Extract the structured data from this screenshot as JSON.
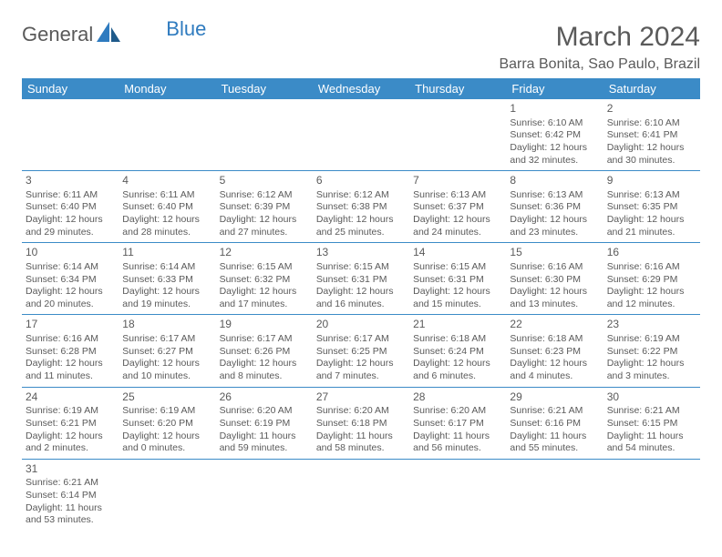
{
  "logo": {
    "text1": "General",
    "text2": "Blue"
  },
  "title": "March 2024",
  "location": "Barra Bonita, Sao Paulo, Brazil",
  "colors": {
    "header_bg": "#3b8bc7",
    "header_text": "#ffffff",
    "body_text": "#5a5a5a",
    "border": "#3b8bc7",
    "logo_accent": "#2f7bbf"
  },
  "day_names": [
    "Sunday",
    "Monday",
    "Tuesday",
    "Wednesday",
    "Thursday",
    "Friday",
    "Saturday"
  ],
  "weeks": [
    [
      null,
      null,
      null,
      null,
      null,
      {
        "n": "1",
        "sr": "6:10 AM",
        "ss": "6:42 PM",
        "dh": "12",
        "dm": "32"
      },
      {
        "n": "2",
        "sr": "6:10 AM",
        "ss": "6:41 PM",
        "dh": "12",
        "dm": "30"
      }
    ],
    [
      {
        "n": "3",
        "sr": "6:11 AM",
        "ss": "6:40 PM",
        "dh": "12",
        "dm": "29"
      },
      {
        "n": "4",
        "sr": "6:11 AM",
        "ss": "6:40 PM",
        "dh": "12",
        "dm": "28"
      },
      {
        "n": "5",
        "sr": "6:12 AM",
        "ss": "6:39 PM",
        "dh": "12",
        "dm": "27"
      },
      {
        "n": "6",
        "sr": "6:12 AM",
        "ss": "6:38 PM",
        "dh": "12",
        "dm": "25"
      },
      {
        "n": "7",
        "sr": "6:13 AM",
        "ss": "6:37 PM",
        "dh": "12",
        "dm": "24"
      },
      {
        "n": "8",
        "sr": "6:13 AM",
        "ss": "6:36 PM",
        "dh": "12",
        "dm": "23"
      },
      {
        "n": "9",
        "sr": "6:13 AM",
        "ss": "6:35 PM",
        "dh": "12",
        "dm": "21"
      }
    ],
    [
      {
        "n": "10",
        "sr": "6:14 AM",
        "ss": "6:34 PM",
        "dh": "12",
        "dm": "20"
      },
      {
        "n": "11",
        "sr": "6:14 AM",
        "ss": "6:33 PM",
        "dh": "12",
        "dm": "19"
      },
      {
        "n": "12",
        "sr": "6:15 AM",
        "ss": "6:32 PM",
        "dh": "12",
        "dm": "17"
      },
      {
        "n": "13",
        "sr": "6:15 AM",
        "ss": "6:31 PM",
        "dh": "12",
        "dm": "16"
      },
      {
        "n": "14",
        "sr": "6:15 AM",
        "ss": "6:31 PM",
        "dh": "12",
        "dm": "15"
      },
      {
        "n": "15",
        "sr": "6:16 AM",
        "ss": "6:30 PM",
        "dh": "12",
        "dm": "13"
      },
      {
        "n": "16",
        "sr": "6:16 AM",
        "ss": "6:29 PM",
        "dh": "12",
        "dm": "12"
      }
    ],
    [
      {
        "n": "17",
        "sr": "6:16 AM",
        "ss": "6:28 PM",
        "dh": "12",
        "dm": "11"
      },
      {
        "n": "18",
        "sr": "6:17 AM",
        "ss": "6:27 PM",
        "dh": "12",
        "dm": "10"
      },
      {
        "n": "19",
        "sr": "6:17 AM",
        "ss": "6:26 PM",
        "dh": "12",
        "dm": "8"
      },
      {
        "n": "20",
        "sr": "6:17 AM",
        "ss": "6:25 PM",
        "dh": "12",
        "dm": "7"
      },
      {
        "n": "21",
        "sr": "6:18 AM",
        "ss": "6:24 PM",
        "dh": "12",
        "dm": "6"
      },
      {
        "n": "22",
        "sr": "6:18 AM",
        "ss": "6:23 PM",
        "dh": "12",
        "dm": "4"
      },
      {
        "n": "23",
        "sr": "6:19 AM",
        "ss": "6:22 PM",
        "dh": "12",
        "dm": "3"
      }
    ],
    [
      {
        "n": "24",
        "sr": "6:19 AM",
        "ss": "6:21 PM",
        "dh": "12",
        "dm": "2"
      },
      {
        "n": "25",
        "sr": "6:19 AM",
        "ss": "6:20 PM",
        "dh": "12",
        "dm": "0"
      },
      {
        "n": "26",
        "sr": "6:20 AM",
        "ss": "6:19 PM",
        "dh": "11",
        "dm": "59"
      },
      {
        "n": "27",
        "sr": "6:20 AM",
        "ss": "6:18 PM",
        "dh": "11",
        "dm": "58"
      },
      {
        "n": "28",
        "sr": "6:20 AM",
        "ss": "6:17 PM",
        "dh": "11",
        "dm": "56"
      },
      {
        "n": "29",
        "sr": "6:21 AM",
        "ss": "6:16 PM",
        "dh": "11",
        "dm": "55"
      },
      {
        "n": "30",
        "sr": "6:21 AM",
        "ss": "6:15 PM",
        "dh": "11",
        "dm": "54"
      }
    ],
    [
      {
        "n": "31",
        "sr": "6:21 AM",
        "ss": "6:14 PM",
        "dh": "11",
        "dm": "53"
      },
      null,
      null,
      null,
      null,
      null,
      null
    ]
  ],
  "labels": {
    "sunrise": "Sunrise:",
    "sunset": "Sunset:",
    "daylight": "Daylight:",
    "hours": "hours",
    "and": "and",
    "minutes": "minutes."
  }
}
